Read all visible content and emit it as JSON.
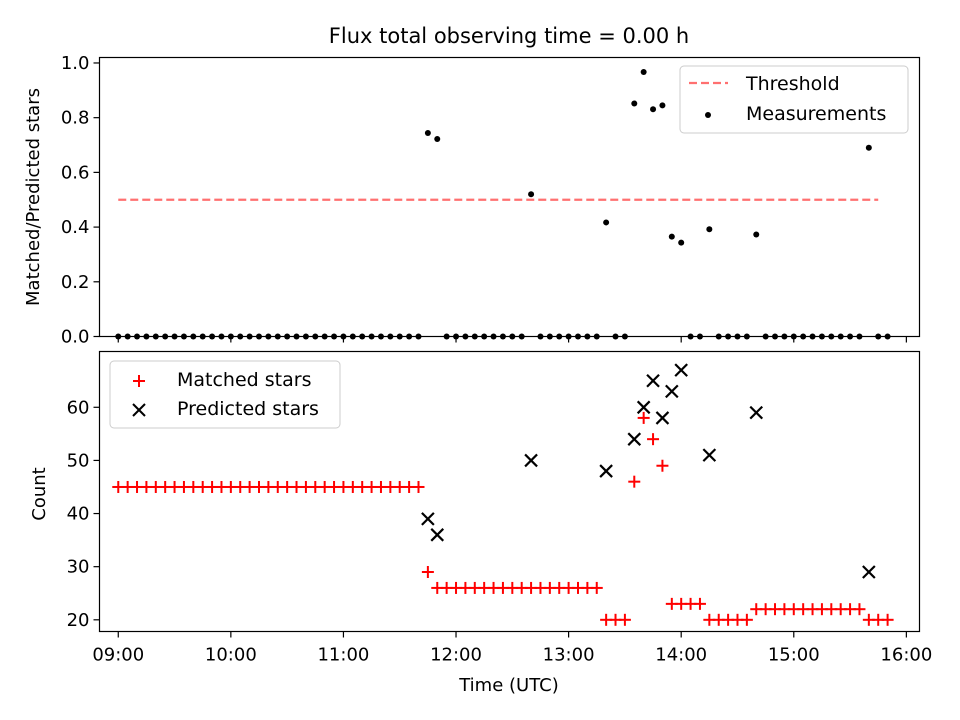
{
  "title": "Flux total observing time = 0.00 h",
  "chart_data": [
    {
      "type": "scatter",
      "title": "Flux total observing time = 0.00 h",
      "ylabel": "Matched/Predicted stars",
      "xlim": [
        "08:50",
        "16:07"
      ],
      "ylim": [
        0,
        1.02
      ],
      "yticks": [
        "0.0",
        "0.2",
        "0.4",
        "0.6",
        "0.8",
        "1.0"
      ],
      "legend_position": "top-right",
      "threshold": {
        "name": "Threshold",
        "y": 0.5,
        "x_start": "09:00",
        "x_end": "15:45",
        "color": "#ff7070"
      },
      "series": [
        {
          "name": "Measurements",
          "color": "#000000",
          "points": [
            [
              "09:00",
              0
            ],
            [
              "09:05",
              0
            ],
            [
              "09:10",
              0
            ],
            [
              "09:15",
              0
            ],
            [
              "09:20",
              0
            ],
            [
              "09:25",
              0
            ],
            [
              "09:30",
              0
            ],
            [
              "09:35",
              0
            ],
            [
              "09:40",
              0
            ],
            [
              "09:45",
              0
            ],
            [
              "09:50",
              0
            ],
            [
              "09:55",
              0
            ],
            [
              "10:00",
              0
            ],
            [
              "10:05",
              0
            ],
            [
              "10:10",
              0
            ],
            [
              "10:15",
              0
            ],
            [
              "10:20",
              0
            ],
            [
              "10:25",
              0
            ],
            [
              "10:30",
              0
            ],
            [
              "10:35",
              0
            ],
            [
              "10:40",
              0
            ],
            [
              "10:45",
              0
            ],
            [
              "10:50",
              0
            ],
            [
              "10:55",
              0
            ],
            [
              "11:00",
              0
            ],
            [
              "11:05",
              0
            ],
            [
              "11:10",
              0
            ],
            [
              "11:15",
              0
            ],
            [
              "11:20",
              0
            ],
            [
              "11:25",
              0
            ],
            [
              "11:30",
              0
            ],
            [
              "11:35",
              0
            ],
            [
              "11:40",
              0
            ],
            [
              "11:45",
              0.744
            ],
            [
              "11:50",
              0.722
            ],
            [
              "11:55",
              0
            ],
            [
              "12:00",
              0
            ],
            [
              "12:05",
              0
            ],
            [
              "12:10",
              0
            ],
            [
              "12:15",
              0
            ],
            [
              "12:20",
              0
            ],
            [
              "12:25",
              0
            ],
            [
              "12:30",
              0
            ],
            [
              "12:35",
              0
            ],
            [
              "12:40",
              0.52
            ],
            [
              "12:45",
              0
            ],
            [
              "12:50",
              0
            ],
            [
              "12:55",
              0
            ],
            [
              "13:00",
              0
            ],
            [
              "13:05",
              0
            ],
            [
              "13:10",
              0
            ],
            [
              "13:15",
              0
            ],
            [
              "13:20",
              0.417
            ],
            [
              "13:25",
              0
            ],
            [
              "13:30",
              0
            ],
            [
              "13:35",
              0.852
            ],
            [
              "13:40",
              0.967
            ],
            [
              "13:45",
              0.831
            ],
            [
              "13:50",
              0.845
            ],
            [
              "13:55",
              0.365
            ],
            [
              "14:00",
              0.343
            ],
            [
              "14:05",
              0
            ],
            [
              "14:10",
              0
            ],
            [
              "14:15",
              0.392
            ],
            [
              "14:20",
              0
            ],
            [
              "14:25",
              0
            ],
            [
              "14:30",
              0
            ],
            [
              "14:35",
              0
            ],
            [
              "14:40",
              0.373
            ],
            [
              "14:45",
              0
            ],
            [
              "14:50",
              0
            ],
            [
              "14:55",
              0
            ],
            [
              "15:00",
              0
            ],
            [
              "15:05",
              0
            ],
            [
              "15:10",
              0
            ],
            [
              "15:15",
              0
            ],
            [
              "15:20",
              0
            ],
            [
              "15:25",
              0
            ],
            [
              "15:30",
              0
            ],
            [
              "15:35",
              0
            ],
            [
              "15:40",
              0.69
            ],
            [
              "15:45",
              0
            ],
            [
              "15:50",
              0
            ]
          ]
        }
      ]
    },
    {
      "type": "scatter",
      "xlabel": "Time (UTC)",
      "ylabel": "Count",
      "xlim": [
        "08:50",
        "16:07"
      ],
      "ylim": [
        17.8,
        70.5
      ],
      "xticks": [
        "09:00",
        "10:00",
        "11:00",
        "12:00",
        "13:00",
        "14:00",
        "15:00",
        "16:00"
      ],
      "yticks": [
        "20",
        "30",
        "40",
        "50",
        "60"
      ],
      "legend_position": "top-left",
      "series": [
        {
          "name": "Matched stars",
          "color": "#ff0000",
          "marker": "+",
          "points": [
            [
              "09:00",
              45
            ],
            [
              "09:05",
              45
            ],
            [
              "09:10",
              45
            ],
            [
              "09:15",
              45
            ],
            [
              "09:20",
              45
            ],
            [
              "09:25",
              45
            ],
            [
              "09:30",
              45
            ],
            [
              "09:35",
              45
            ],
            [
              "09:40",
              45
            ],
            [
              "09:45",
              45
            ],
            [
              "09:50",
              45
            ],
            [
              "09:55",
              45
            ],
            [
              "10:00",
              45
            ],
            [
              "10:05",
              45
            ],
            [
              "10:10",
              45
            ],
            [
              "10:15",
              45
            ],
            [
              "10:20",
              45
            ],
            [
              "10:25",
              45
            ],
            [
              "10:30",
              45
            ],
            [
              "10:35",
              45
            ],
            [
              "10:40",
              45
            ],
            [
              "10:45",
              45
            ],
            [
              "10:50",
              45
            ],
            [
              "10:55",
              45
            ],
            [
              "11:00",
              45
            ],
            [
              "11:05",
              45
            ],
            [
              "11:10",
              45
            ],
            [
              "11:15",
              45
            ],
            [
              "11:20",
              45
            ],
            [
              "11:25",
              45
            ],
            [
              "11:30",
              45
            ],
            [
              "11:35",
              45
            ],
            [
              "11:40",
              45
            ],
            [
              "11:45",
              29
            ],
            [
              "11:50",
              26
            ],
            [
              "11:55",
              26
            ],
            [
              "12:00",
              26
            ],
            [
              "12:05",
              26
            ],
            [
              "12:10",
              26
            ],
            [
              "12:15",
              26
            ],
            [
              "12:20",
              26
            ],
            [
              "12:25",
              26
            ],
            [
              "12:30",
              26
            ],
            [
              "12:35",
              26
            ],
            [
              "12:40",
              26
            ],
            [
              "12:45",
              26
            ],
            [
              "12:50",
              26
            ],
            [
              "12:55",
              26
            ],
            [
              "13:00",
              26
            ],
            [
              "13:05",
              26
            ],
            [
              "13:10",
              26
            ],
            [
              "13:15",
              26
            ],
            [
              "13:20",
              20
            ],
            [
              "13:25",
              20
            ],
            [
              "13:30",
              20
            ],
            [
              "13:35",
              46
            ],
            [
              "13:40",
              58
            ],
            [
              "13:45",
              54
            ],
            [
              "13:50",
              49
            ],
            [
              "13:55",
              23
            ],
            [
              "14:00",
              23
            ],
            [
              "14:05",
              23
            ],
            [
              "14:10",
              23
            ],
            [
              "14:15",
              20
            ],
            [
              "14:20",
              20
            ],
            [
              "14:25",
              20
            ],
            [
              "14:30",
              20
            ],
            [
              "14:35",
              20
            ],
            [
              "14:40",
              22
            ],
            [
              "14:45",
              22
            ],
            [
              "14:50",
              22
            ],
            [
              "14:55",
              22
            ],
            [
              "15:00",
              22
            ],
            [
              "15:05",
              22
            ],
            [
              "15:10",
              22
            ],
            [
              "15:15",
              22
            ],
            [
              "15:20",
              22
            ],
            [
              "15:25",
              22
            ],
            [
              "15:30",
              22
            ],
            [
              "15:35",
              22
            ],
            [
              "15:40",
              20
            ],
            [
              "15:45",
              20
            ],
            [
              "15:50",
              20
            ]
          ]
        },
        {
          "name": "Predicted stars",
          "color": "#000000",
          "marker": "x",
          "points": [
            [
              "11:45",
              39
            ],
            [
              "11:50",
              36
            ],
            [
              "12:40",
              50
            ],
            [
              "13:20",
              48
            ],
            [
              "13:35",
              54
            ],
            [
              "13:40",
              60
            ],
            [
              "13:45",
              65
            ],
            [
              "13:50",
              58
            ],
            [
              "13:55",
              63
            ],
            [
              "14:00",
              67
            ],
            [
              "14:15",
              51
            ],
            [
              "14:40",
              59
            ],
            [
              "15:40",
              29
            ]
          ]
        }
      ]
    }
  ]
}
